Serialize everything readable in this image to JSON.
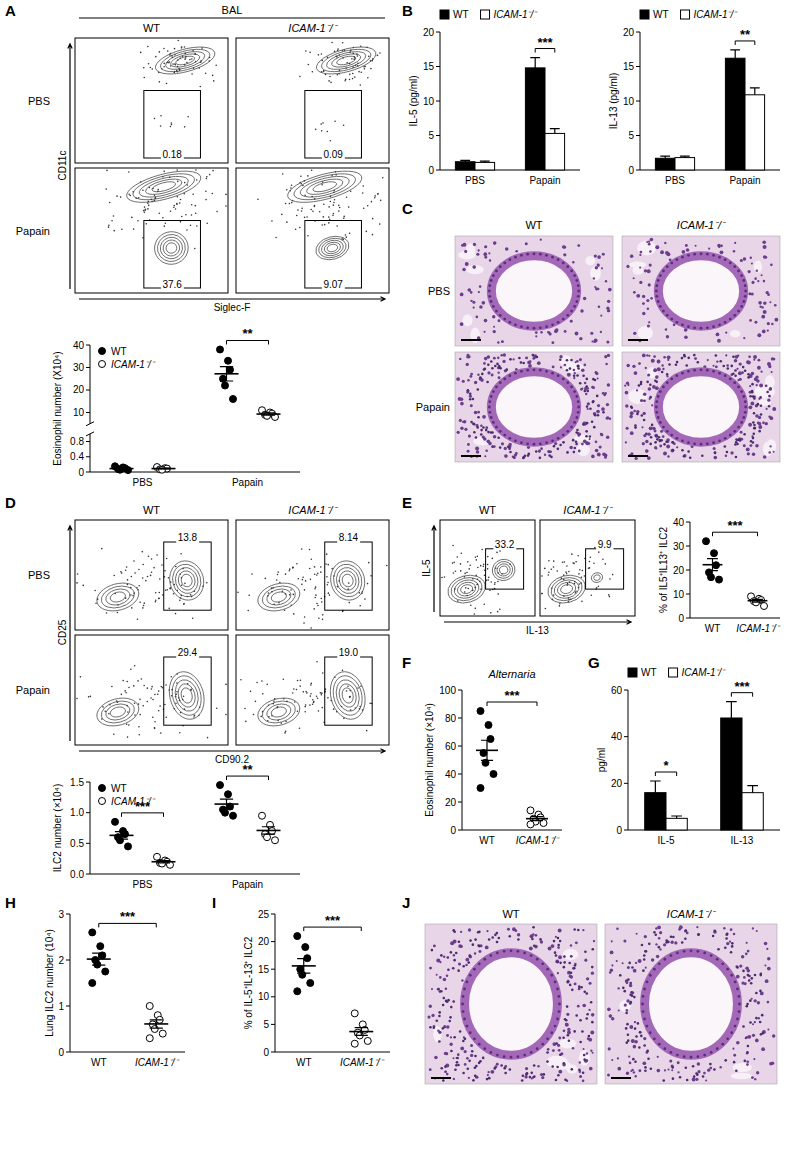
{
  "chart_data": [
    {
      "type": "dot",
      "y_label": "Eosinophil number (X10⁴)",
      "categories": [
        "PBS",
        "Papain"
      ],
      "series": [
        {
          "name": "WT",
          "color": "#000000",
          "values": [
            [
              0.15,
              0.12,
              0.1,
              0.08,
              0.06,
              0.05
            ],
            [
              38,
              33,
              29,
              25,
              22,
              16
            ]
          ],
          "mean": [
            0.09,
            27.2
          ],
          "error": [
            0.02,
            3.2
          ]
        },
        {
          "name": "ICAM-1⁻/⁻",
          "color": "#ffffff",
          "values": [
            [
              0.13,
              0.1,
              0.09,
              0.07,
              0.06
            ],
            [
              11,
              10,
              9.5,
              9,
              8.5,
              8
            ]
          ],
          "mean": [
            0.09,
            9.3
          ],
          "error": [
            0.01,
            0.5
          ]
        }
      ],
      "ylim": [
        0,
        40
      ],
      "y_break": [
        1,
        5
      ],
      "yticks": [
        0,
        0.4,
        0.8,
        10,
        20,
        30,
        40
      ],
      "legend": "top-left",
      "annotations": [
        {
          "text": "**",
          "category": "Papain"
        }
      ]
    },
    {
      "panel": "B",
      "type": "bar",
      "y_label": "IL-5 (pg/ml)",
      "categories": [
        "PBS",
        "Papain"
      ],
      "series": [
        {
          "name": "WT",
          "color": "#000000",
          "values": [
            1.2,
            14.8
          ],
          "error": [
            0.2,
            1.5
          ]
        },
        {
          "name": "ICAM-1⁻/⁻",
          "color": "#ffffff",
          "values": [
            1.1,
            5.3
          ],
          "error": [
            0.2,
            0.7
          ]
        }
      ],
      "ylim": [
        0,
        20
      ],
      "yticks": [
        0,
        5,
        10,
        15,
        20
      ],
      "legend": "top",
      "annotations": [
        {
          "text": "***",
          "category": "Papain"
        }
      ]
    },
    {
      "type": "bar",
      "y_label": "IL-13 (pg/ml)",
      "categories": [
        "PBS",
        "Papain"
      ],
      "series": [
        {
          "name": "WT",
          "color": "#000000",
          "values": [
            1.7,
            16.2
          ],
          "error": [
            0.3,
            1.2
          ]
        },
        {
          "name": "ICAM-1⁻/⁻",
          "color": "#ffffff",
          "values": [
            1.8,
            10.9
          ],
          "error": [
            0.2,
            1.0
          ]
        }
      ],
      "ylim": [
        0,
        20
      ],
      "yticks": [
        0,
        5,
        10,
        15,
        20
      ],
      "legend": "top",
      "annotations": [
        {
          "text": "**",
          "category": "Papain"
        }
      ]
    },
    {
      "type": "dot",
      "y_label": "ILC2 number (×10⁴)",
      "categories": [
        "PBS",
        "Papain"
      ],
      "series": [
        {
          "name": "WT",
          "color": "#000000",
          "values": [
            [
              0.85,
              0.7,
              0.65,
              0.6,
              0.55,
              0.45
            ],
            [
              1.45,
              1.3,
              1.1,
              1.05,
              1.0,
              0.95
            ]
          ],
          "mean": [
            0.63,
            1.14
          ],
          "error": [
            0.06,
            0.08
          ]
        },
        {
          "name": "ICAM-1⁻/⁻",
          "color": "#ffffff",
          "values": [
            [
              0.28,
              0.22,
              0.2,
              0.18,
              0.17,
              0.15
            ],
            [
              0.95,
              0.8,
              0.7,
              0.65,
              0.6,
              0.55
            ]
          ],
          "mean": [
            0.2,
            0.71
          ],
          "error": [
            0.02,
            0.06
          ]
        }
      ],
      "ylim": [
        0,
        1.5
      ],
      "yticks": [
        {
          "value": 0,
          "label": "0.0"
        },
        0.5,
        {
          "value": 1,
          "label": "1.0"
        },
        1.5
      ],
      "legend": "top-left",
      "annotations": [
        {
          "text": "***",
          "category": "PBS"
        },
        {
          "text": "**",
          "category": "Papain"
        }
      ]
    },
    {
      "type": "dot",
      "y_label": "% of IL5⁺IL13⁺ ILC2",
      "categories": [
        "WT",
        "ICAM-1⁻/⁻"
      ],
      "values": [
        [
          32,
          27,
          22,
          19,
          17,
          16
        ],
        [
          9,
          8,
          7.5,
          7,
          6.5,
          5
        ]
      ],
      "mean": [
        22.2,
        7.2
      ],
      "error": [
        2.5,
        0.6
      ],
      "colors": [
        "#000000",
        "#ffffff"
      ],
      "ylim": [
        0,
        40
      ],
      "yticks": [
        0,
        10,
        20,
        30,
        40
      ],
      "annotations": [
        {
          "text": "***"
        }
      ]
    },
    {
      "panel": "F",
      "type": "dot",
      "title": "Alternaria",
      "y_label": "Eosinophil number (×10⁴)",
      "categories": [
        "WT",
        "ICAM-1⁻/⁻"
      ],
      "values": [
        [
          85,
          75,
          65,
          55,
          48,
          40,
          30
        ],
        [
          14,
          11,
          9,
          8,
          6,
          5,
          4
        ]
      ],
      "mean": [
        56.9,
        8.1
      ],
      "error": [
        7.2,
        1.4
      ],
      "colors": [
        "#000000",
        "#ffffff"
      ],
      "ylim": [
        0,
        100
      ],
      "yticks": [
        0,
        20,
        40,
        60,
        80,
        100
      ],
      "annotations": [
        {
          "text": "***"
        }
      ]
    },
    {
      "panel": "G",
      "type": "bar",
      "y_label": "pg/ml",
      "categories": [
        "IL-5",
        "IL-13"
      ],
      "series": [
        {
          "name": "WT",
          "color": "#000000",
          "values": [
            16,
            48
          ],
          "error": [
            5,
            7
          ]
        },
        {
          "name": "ICAM-1⁻/⁻",
          "color": "#ffffff",
          "values": [
            5,
            16
          ],
          "error": [
            1,
            3
          ]
        }
      ],
      "ylim": [
        0,
        60
      ],
      "yticks": [
        0,
        20,
        40,
        60
      ],
      "legend": "top",
      "annotations": [
        {
          "text": "*",
          "category": "IL-5"
        },
        {
          "text": "***",
          "category": "IL-13"
        }
      ]
    },
    {
      "panel": "H",
      "type": "dot",
      "y_label": "Lung ILC2 number (10⁴)",
      "categories": [
        "WT",
        "ICAM-1⁻/⁻"
      ],
      "values": [
        [
          2.6,
          2.3,
          2.1,
          2.0,
          1.9,
          1.75,
          1.5
        ],
        [
          1.0,
          0.8,
          0.7,
          0.6,
          0.5,
          0.4,
          0.3
        ]
      ],
      "mean": [
        2.02,
        0.61
      ],
      "error": [
        0.13,
        0.09
      ],
      "colors": [
        "#000000",
        "#ffffff"
      ],
      "ylim": [
        0,
        3
      ],
      "yticks": [
        0,
        1,
        2,
        3
      ],
      "annotations": [
        {
          "text": "***"
        }
      ]
    },
    {
      "panel": "I",
      "type": "dot",
      "y_label": "% of IL-5⁺IL-13⁺ ILC2",
      "categories": [
        "WT",
        "ICAM-1⁻/⁻"
      ],
      "values": [
        [
          21,
          19,
          17,
          15,
          14,
          12.5,
          11
        ],
        [
          7,
          5,
          4,
          3.5,
          3,
          2,
          1.5
        ]
      ],
      "mean": [
        15.6,
        3.7
      ],
      "error": [
        1.3,
        0.7
      ],
      "colors": [
        "#000000",
        "#ffffff"
      ],
      "ylim": [
        0,
        25
      ],
      "yticks": [
        0,
        5,
        10,
        15,
        20,
        25
      ],
      "annotations": [
        {
          "text": "***"
        }
      ]
    }
  ],
  "flow_panels": [
    {
      "panel": "A",
      "header": "BAL",
      "columns": [
        "WT",
        "ICAM-1⁻/⁻"
      ],
      "rows": [
        "PBS",
        "Papain"
      ],
      "x_label": "Siglec-F",
      "y_label": "CD11c",
      "gates": [
        [
          "0.18",
          "0.09"
        ],
        [
          "37.6",
          "9.07"
        ]
      ]
    },
    {
      "panel": "D",
      "columns": [
        "WT",
        "ICAM-1⁻/⁻"
      ],
      "rows": [
        "PBS",
        "Papain"
      ],
      "x_label": "CD90.2",
      "y_label": "CD25",
      "gates": [
        [
          "13.8",
          "8.14"
        ],
        [
          "29.4",
          "19.0"
        ]
      ]
    },
    {
      "panel": "E",
      "columns": [
        "WT",
        "ICAM-1⁻/⁻"
      ],
      "x_label": "IL-13",
      "y_label": "IL-5",
      "gates": [
        [
          "33.2",
          "9.9"
        ]
      ]
    }
  ],
  "histology": [
    {
      "panel": "C",
      "columns": [
        "WT",
        "ICAM-1⁻/⁻"
      ],
      "rows": [
        "PBS",
        "Papain"
      ]
    },
    {
      "panel": "J",
      "columns": [
        "WT",
        "ICAM-1⁻/⁻"
      ]
    }
  ]
}
